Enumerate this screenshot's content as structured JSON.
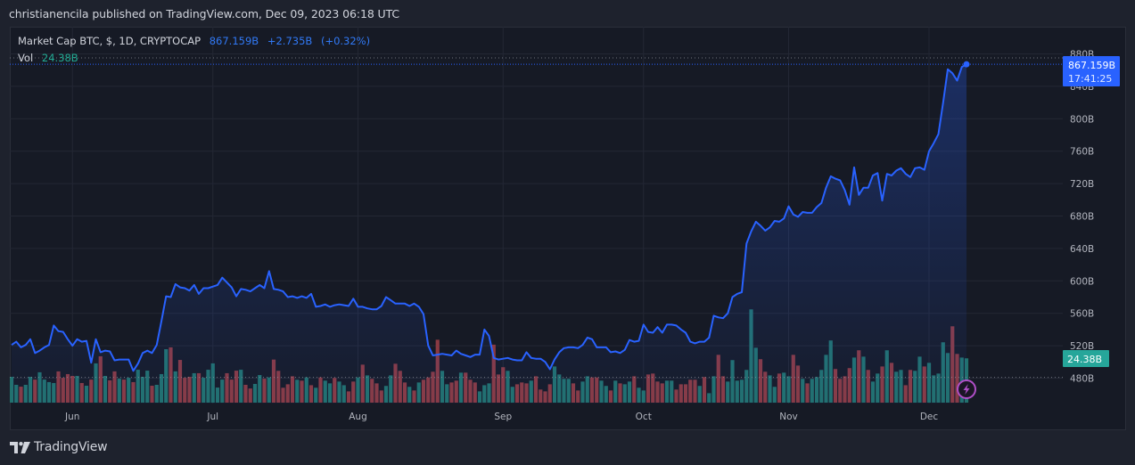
{
  "header": {
    "attribution": "christianencila published on TradingView.com, Dec 09, 2023 06:18 UTC"
  },
  "legend": {
    "symbol": "Market Cap BTC, $, 1D, CRYPTOCAP",
    "last": "867.159B",
    "change": "+2.735B",
    "change_pct": "(+0.32%)",
    "vol_label": "Vol",
    "vol_value": "24.38B"
  },
  "price_axis": {
    "labels": [
      "880B",
      "840B",
      "800B",
      "760B",
      "720B",
      "680B",
      "640B",
      "600B",
      "560B",
      "520B",
      "480B"
    ],
    "label_values": [
      880,
      840,
      800,
      760,
      720,
      680,
      640,
      600,
      560,
      520,
      480
    ],
    "last_price_tag": "867.159B",
    "countdown": "17:41:25",
    "volume_tag": "24.38B"
  },
  "time_axis": {
    "labels": [
      "Jun",
      "Jul",
      "Aug",
      "Sep",
      "Oct",
      "Nov",
      "Dec"
    ],
    "indices": [
      13,
      43,
      74,
      105,
      135,
      166,
      196
    ]
  },
  "footer": {
    "brand": "TradingView"
  },
  "colors": {
    "line": "#2962ff",
    "up_volume": "#22716d",
    "down_volume": "#8a3a42",
    "price_tag": "#2962ff",
    "volume_tag": "#26a69a",
    "grid": "#232734",
    "alert_icon": "#b04fc8"
  },
  "chart_data": {
    "type": "line",
    "title": "Market Cap BTC, $, 1D, CRYPTOCAP",
    "xlabel": "",
    "ylabel": "",
    "x_ticks": [
      "Jun",
      "Jul",
      "Aug",
      "Sep",
      "Oct",
      "Nov",
      "Dec"
    ],
    "y_ticks": [
      "480B",
      "520B",
      "560B",
      "600B",
      "640B",
      "680B",
      "720B",
      "760B",
      "800B",
      "840B",
      "880B"
    ],
    "ylim": [
      449,
      913
    ],
    "grid": true,
    "legend_position": "top-left",
    "last_value": 867.159,
    "change": 2.735,
    "change_pct": 0.32,
    "high_line": 875,
    "low_line": 481,
    "series": [
      {
        "name": "Market Cap BTC (B USD)",
        "type": "line",
        "values": [
          521,
          525,
          518,
          521,
          528,
          511,
          514,
          518,
          521,
          545,
          538,
          537,
          528,
          520,
          528,
          525,
          526,
          499,
          528,
          512,
          514,
          513,
          502,
          503,
          503,
          503,
          489,
          498,
          511,
          514,
          511,
          521,
          550,
          581,
          580,
          596,
          592,
          591,
          588,
          595,
          584,
          591,
          591,
          593,
          595,
          604,
          598,
          592,
          581,
          590,
          589,
          587,
          591,
          595,
          591,
          612,
          590,
          589,
          587,
          580,
          581,
          579,
          581,
          579,
          584,
          568,
          569,
          571,
          568,
          570,
          571,
          570,
          569,
          578,
          568,
          568,
          566,
          565,
          565,
          569,
          580,
          576,
          572,
          572,
          572,
          569,
          572,
          568,
          559,
          520,
          508,
          509,
          510,
          509,
          508,
          514,
          510,
          508,
          506,
          509,
          509,
          540,
          532,
          505,
          503,
          504,
          505,
          503,
          502,
          502,
          512,
          505,
          504,
          504,
          500,
          491,
          503,
          512,
          517,
          518,
          518,
          517,
          521,
          530,
          528,
          518,
          518,
          518,
          512,
          513,
          511,
          515,
          527,
          525,
          526,
          546,
          537,
          536,
          543,
          536,
          546,
          546,
          545,
          540,
          536,
          525,
          523,
          525,
          525,
          530,
          557,
          555,
          554,
          560,
          580,
          584,
          586,
          646,
          661,
          673,
          668,
          662,
          666,
          674,
          673,
          677,
          692,
          682,
          679,
          685,
          684,
          684,
          691,
          696,
          715,
          729,
          726,
          724,
          712,
          694,
          740,
          706,
          715,
          715,
          730,
          733,
          699,
          732,
          730,
          736,
          739,
          732,
          728,
          739,
          740,
          737,
          760,
          770,
          781,
          820,
          861,
          856,
          847,
          864,
          867.159
        ]
      },
      {
        "name": "Volume (B USD)",
        "type": "bar",
        "values": [
          14.2,
          9.8,
          8.8,
          9.8,
          14.2,
          12.7,
          16.7,
          12.7,
          11.3,
          10.8,
          17.2,
          13.7,
          15.7,
          14.7,
          14.7,
          10.8,
          9.3,
          12.7,
          21.6,
          25.5,
          14.7,
          12.3,
          17.2,
          13.2,
          12.7,
          13.7,
          11.3,
          18.1,
          14.2,
          17.6,
          9.3,
          9.8,
          15.7,
          29.4,
          30.4,
          17.2,
          23.5,
          13.7,
          14.2,
          16.2,
          16.2,
          13.7,
          18.1,
          21.6,
          8.3,
          12.7,
          16.2,
          12.7,
          17.6,
          18.1,
          9.8,
          7.8,
          10.3,
          15.2,
          13.2,
          13.9,
          23.7,
          17.5,
          8.2,
          10.1,
          14.5,
          12.6,
          12.1,
          13.9,
          9.6,
          8.2,
          13.9,
          12.1,
          10.6,
          13.6,
          11.6,
          9.6,
          6.2,
          11.6,
          13.9,
          20.9,
          15.0,
          13.1,
          10.6,
          6.7,
          9.2,
          15.0,
          21.4,
          17.5,
          11.1,
          8.7,
          6.7,
          11.1,
          12.6,
          13.9,
          17.0,
          34.6,
          17.5,
          10.1,
          11.1,
          12.1,
          16.5,
          16.5,
          12.6,
          11.1,
          6.2,
          9.6,
          10.6,
          31.9,
          15.5,
          19.5,
          17.5,
          8.7,
          10.1,
          11.1,
          10.6,
          12.1,
          14.5,
          7.2,
          6.2,
          10.1,
          19.9,
          15.5,
          13.1,
          13.1,
          10.6,
          6.7,
          11.6,
          14.5,
          13.9,
          13.9,
          12.1,
          9.2,
          6.7,
          12.1,
          10.6,
          10.1,
          11.6,
          14.5,
          8.2,
          6.7,
          15.5,
          16.0,
          11.6,
          10.6,
          12.1,
          12.1,
          7.2,
          10.1,
          10.1,
          12.6,
          12.6,
          9.2,
          14.1,
          5.2,
          14.5,
          26.3,
          14.5,
          11.6,
          23.4,
          12.1,
          12.6,
          18.0,
          51.3,
          30.2,
          23.9,
          17.0,
          15.0,
          8.7,
          16.0,
          16.5,
          14.5,
          26.3,
          20.4,
          13.1,
          10.6,
          13.1,
          14.1,
          18.0,
          26.3,
          34.2,
          18.5,
          13.1,
          14.5,
          19.0,
          24.8,
          28.8,
          25.3,
          18.0,
          11.6,
          16.0,
          19.9,
          28.8,
          21.9,
          17.0,
          18.0,
          9.6,
          18.0,
          17.5,
          25.3,
          19.9,
          21.9,
          15.0,
          16.0,
          33.2,
          27.3,
          42.0,
          26.8,
          24.8,
          24.38
        ],
        "up": [
          1,
          1,
          0,
          1,
          1,
          0,
          1,
          1,
          1,
          1,
          0,
          0,
          0,
          0,
          1,
          0,
          1,
          0,
          1,
          0,
          1,
          0,
          0,
          1,
          0,
          1,
          0,
          1,
          1,
          1,
          0,
          1,
          1,
          1,
          0,
          1,
          0,
          0,
          0,
          1,
          0,
          1,
          1,
          1,
          1,
          1,
          0,
          0,
          0,
          1,
          0,
          0,
          1,
          1,
          0,
          1,
          0,
          0,
          0,
          0,
          0,
          1,
          0,
          1,
          0,
          1,
          0,
          1,
          1,
          0,
          1,
          1,
          0,
          0,
          1,
          0,
          1,
          0,
          0,
          0,
          1,
          1,
          0,
          0,
          0,
          1,
          0,
          1,
          0,
          0,
          0,
          0,
          1,
          1,
          0,
          0,
          1,
          0,
          0,
          0,
          1,
          1,
          1,
          0,
          0,
          0,
          1,
          1,
          0,
          0,
          0,
          1,
          0,
          0,
          0,
          0,
          1,
          1,
          1,
          1,
          0,
          0,
          1,
          1,
          0,
          0,
          1,
          1,
          0,
          1,
          0,
          1,
          1,
          0,
          1,
          1,
          0,
          0,
          0,
          0,
          1,
          1,
          0,
          0,
          0,
          0,
          0,
          1,
          0,
          1,
          1,
          0,
          0,
          1,
          1,
          1,
          1,
          1,
          1,
          1,
          0,
          0,
          1,
          1,
          0,
          1,
          1,
          0,
          0,
          1,
          0,
          1,
          1,
          1,
          1,
          1,
          0,
          0,
          0,
          0,
          1,
          0,
          1,
          0,
          1,
          1,
          0,
          1,
          0,
          1,
          1,
          0,
          0,
          1,
          1,
          0,
          1,
          1,
          1,
          1,
          1,
          0,
          0,
          1,
          1
        ]
      }
    ]
  }
}
